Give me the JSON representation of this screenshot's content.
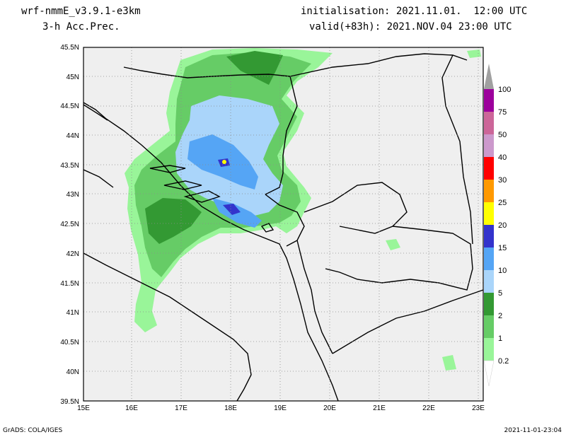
{
  "header": {
    "model": "wrf-nmmE_v3.9.1-e3km",
    "field": "3-h Acc.Prec.",
    "init": "initialisation: 2021.11.01.  12:00 UTC",
    "valid": "valid(+83h): 2021.NOV.04 23:00 UTC"
  },
  "footer": {
    "credit": "GrADS: COLA/IGES",
    "timestamp": "2021-11-01-23:04"
  },
  "map": {
    "lat_labels": [
      "45.5N",
      "45N",
      "44.5N",
      "44N",
      "43.5N",
      "43N",
      "42.5N",
      "42N",
      "41.5N",
      "41N",
      "40.5N",
      "40N",
      "39.5N"
    ],
    "lon_labels": [
      "15E",
      "16E",
      "17E",
      "18E",
      "19E",
      "20E",
      "21E",
      "22E",
      "23E"
    ]
  },
  "legend": {
    "levels": [
      "100",
      "75",
      "50",
      "40",
      "30",
      "25",
      "20",
      "15",
      "10",
      "5",
      "2",
      "1",
      "0.2"
    ],
    "colors": [
      "#a0a0a0",
      "#9c009c",
      "#cc6699",
      "#cc99cc",
      "#ff0000",
      "#ff9900",
      "#ffff00",
      "#3333cc",
      "#55a5f5",
      "#aad5fa",
      "#339933",
      "#66cc66",
      "#99f599"
    ]
  }
}
